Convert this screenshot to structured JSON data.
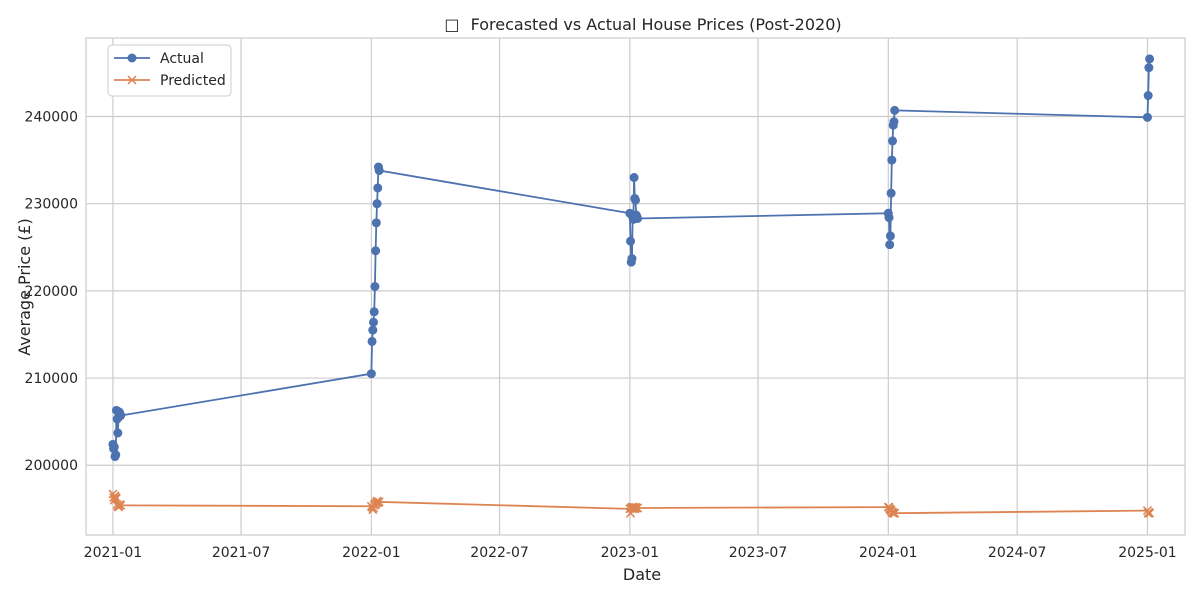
{
  "chart_data": {
    "type": "line",
    "title": "Forecasted vs Actual House Prices (Post-2020)",
    "title_icon": "□",
    "xlabel": "Date",
    "ylabel": "Average Price (£)",
    "x_ticks": [
      "2021-01",
      "2021-07",
      "2022-01",
      "2022-07",
      "2023-01",
      "2023-07",
      "2024-01",
      "2024-07",
      "2025-01"
    ],
    "y_ticks": [
      200000,
      210000,
      220000,
      230000,
      240000
    ],
    "xlim": [
      "2020-11-24",
      "2025-02-23"
    ],
    "ylim": [
      192000,
      249000
    ],
    "grid": true,
    "legend_position": "top-left",
    "series": [
      {
        "name": "Actual",
        "color": "#4C72B0",
        "marker": "circle",
        "points": [
          [
            "2021-01-01",
            202400
          ],
          [
            "2021-01-02",
            201900
          ],
          [
            "2021-01-03",
            202100
          ],
          [
            "2021-01-04",
            201000
          ],
          [
            "2021-01-05",
            201200
          ],
          [
            "2021-01-06",
            206300
          ],
          [
            "2021-01-07",
            205300
          ],
          [
            "2021-01-08",
            203700
          ],
          [
            "2021-01-09",
            205500
          ],
          [
            "2021-01-10",
            206100
          ],
          [
            "2021-01-11",
            205900
          ],
          [
            "2021-01-12",
            205700
          ],
          [
            "2022-01-01",
            210500
          ],
          [
            "2022-01-02",
            214200
          ],
          [
            "2022-01-03",
            215500
          ],
          [
            "2022-01-04",
            216400
          ],
          [
            "2022-01-05",
            217600
          ],
          [
            "2022-01-06",
            220500
          ],
          [
            "2022-01-07",
            224600
          ],
          [
            "2022-01-08",
            227800
          ],
          [
            "2022-01-09",
            230000
          ],
          [
            "2022-01-10",
            231800
          ],
          [
            "2022-01-11",
            234200
          ],
          [
            "2022-01-12",
            233800
          ],
          [
            "2023-01-01",
            228900
          ],
          [
            "2023-01-02",
            225700
          ],
          [
            "2023-01-03",
            223300
          ],
          [
            "2023-01-04",
            223700
          ],
          [
            "2023-01-05",
            228500
          ],
          [
            "2023-01-06",
            228200
          ],
          [
            "2023-01-07",
            233000
          ],
          [
            "2023-01-08",
            230600
          ],
          [
            "2023-01-09",
            230400
          ],
          [
            "2023-01-10",
            228700
          ],
          [
            "2023-01-11",
            228500
          ],
          [
            "2023-01-12",
            228300
          ],
          [
            "2024-01-01",
            228900
          ],
          [
            "2024-01-02",
            228400
          ],
          [
            "2024-01-03",
            225300
          ],
          [
            "2024-01-04",
            226300
          ],
          [
            "2024-01-05",
            231200
          ],
          [
            "2024-01-06",
            235000
          ],
          [
            "2024-01-07",
            237200
          ],
          [
            "2024-01-08",
            239000
          ],
          [
            "2024-01-09",
            239400
          ],
          [
            "2024-01-10",
            240700
          ],
          [
            "2025-01-01",
            239900
          ],
          [
            "2025-01-02",
            242400
          ],
          [
            "2025-01-03",
            245600
          ],
          [
            "2025-01-04",
            246600
          ]
        ]
      },
      {
        "name": "Predicted",
        "color": "#DD8452",
        "marker": "x",
        "points": [
          [
            "2021-01-01",
            196700
          ],
          [
            "2021-01-02",
            196300
          ],
          [
            "2021-01-03",
            196000
          ],
          [
            "2021-01-04",
            196500
          ],
          [
            "2021-01-05",
            196300
          ],
          [
            "2021-01-06",
            196200
          ],
          [
            "2021-01-07",
            195500
          ],
          [
            "2021-01-08",
            195300
          ],
          [
            "2021-01-09",
            195200
          ],
          [
            "2021-01-10",
            195400
          ],
          [
            "2021-01-11",
            195500
          ],
          [
            "2021-01-12",
            195400
          ],
          [
            "2022-01-01",
            195300
          ],
          [
            "2022-01-02",
            195200
          ],
          [
            "2022-01-03",
            194900
          ],
          [
            "2022-01-04",
            195100
          ],
          [
            "2022-01-05",
            195400
          ],
          [
            "2022-01-06",
            195600
          ],
          [
            "2022-01-07",
            195500
          ],
          [
            "2022-01-08",
            195700
          ],
          [
            "2022-01-09",
            195900
          ],
          [
            "2022-01-10",
            195700
          ],
          [
            "2022-01-11",
            195800
          ],
          [
            "2022-01-12",
            195800
          ],
          [
            "2023-01-01",
            195000
          ],
          [
            "2023-01-02",
            194500
          ],
          [
            "2023-01-03",
            195100
          ],
          [
            "2023-01-04",
            195200
          ],
          [
            "2023-01-05",
            195000
          ],
          [
            "2023-01-06",
            195200
          ],
          [
            "2023-01-07",
            195100
          ],
          [
            "2023-01-08",
            195000
          ],
          [
            "2023-01-09",
            195200
          ],
          [
            "2023-01-10",
            195100
          ],
          [
            "2023-01-11",
            195100
          ],
          [
            "2023-01-12",
            195100
          ],
          [
            "2024-01-01",
            195200
          ],
          [
            "2024-01-02",
            195200
          ],
          [
            "2024-01-03",
            195000
          ],
          [
            "2024-01-04",
            194900
          ],
          [
            "2024-01-05",
            194800
          ],
          [
            "2024-01-06",
            194600
          ],
          [
            "2024-01-07",
            194600
          ],
          [
            "2024-01-08",
            194500
          ],
          [
            "2024-01-09",
            194500
          ],
          [
            "2024-01-10",
            194500
          ],
          [
            "2025-01-01",
            194800
          ],
          [
            "2025-01-02",
            194500
          ],
          [
            "2025-01-03",
            194600
          ],
          [
            "2025-01-04",
            194500
          ]
        ]
      }
    ]
  }
}
